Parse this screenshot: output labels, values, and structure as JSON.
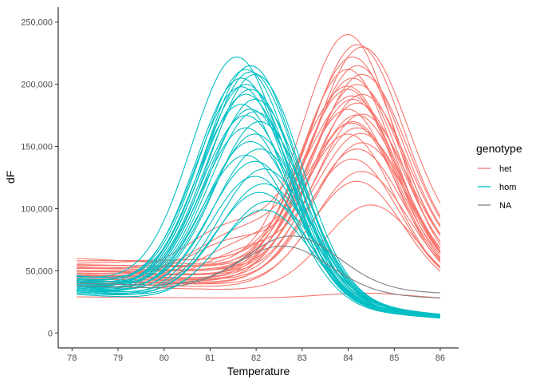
{
  "chart_data": {
    "type": "line",
    "title": "",
    "xlabel": "Temperature",
    "ylabel": "dF",
    "xlim": [
      77.7,
      86.4
    ],
    "ylim": [
      -12000,
      262000
    ],
    "x_ticks": [
      78,
      79,
      80,
      81,
      82,
      83,
      84,
      85,
      86
    ],
    "y_ticks": [
      0,
      50000,
      100000,
      150000,
      200000,
      250000
    ],
    "y_tick_labels": [
      "0",
      "50,000",
      "100,000",
      "150,000",
      "200,000",
      "250,000"
    ],
    "grid": false,
    "legend": {
      "title": "genotype",
      "position": "right",
      "entries": [
        {
          "label": "het",
          "color": "#F8766D"
        },
        {
          "label": "hom",
          "color": "#00BFC4"
        },
        {
          "label": "NA",
          "color": "#7F7F7F"
        }
      ]
    },
    "x_range": [
      78.1,
      86.0
    ],
    "curve_shape": "baseline + gaussian melt peak per sample",
    "groups": [
      {
        "name": "het",
        "color": "#F8766D",
        "curves": [
          {
            "peak_x": 84.0,
            "peak_y": 240000,
            "start_y": 60000,
            "end_y": 45000
          },
          {
            "peak_x": 84.2,
            "peak_y": 232000,
            "start_y": 58000,
            "end_y": 60000
          },
          {
            "peak_x": 84.3,
            "peak_y": 230000,
            "start_y": 56000,
            "end_y": 65000
          },
          {
            "peak_x": 84.1,
            "peak_y": 222000,
            "start_y": 55000,
            "end_y": 50000
          },
          {
            "peak_x": 84.2,
            "peak_y": 215000,
            "start_y": 54000,
            "end_y": 55000
          },
          {
            "peak_x": 84.0,
            "peak_y": 212000,
            "start_y": 53000,
            "end_y": 42000
          },
          {
            "peak_x": 84.3,
            "peak_y": 208000,
            "start_y": 52000,
            "end_y": 56000
          },
          {
            "peak_x": 84.1,
            "peak_y": 205000,
            "start_y": 52000,
            "end_y": 48000
          },
          {
            "peak_x": 84.2,
            "peak_y": 200000,
            "start_y": 50000,
            "end_y": 50000
          },
          {
            "peak_x": 84.0,
            "peak_y": 196000,
            "start_y": 50000,
            "end_y": 40000
          },
          {
            "peak_x": 84.3,
            "peak_y": 192000,
            "start_y": 49000,
            "end_y": 52000
          },
          {
            "peak_x": 84.1,
            "peak_y": 188000,
            "start_y": 48000,
            "end_y": 45000
          },
          {
            "peak_x": 84.2,
            "peak_y": 185000,
            "start_y": 48000,
            "end_y": 46000
          },
          {
            "peak_x": 84.0,
            "peak_y": 180000,
            "start_y": 47000,
            "end_y": 38000
          },
          {
            "peak_x": 84.3,
            "peak_y": 176000,
            "start_y": 46000,
            "end_y": 48000
          },
          {
            "peak_x": 84.1,
            "peak_y": 170000,
            "start_y": 45000,
            "end_y": 42000
          },
          {
            "peak_x": 84.2,
            "peak_y": 165000,
            "start_y": 45000,
            "end_y": 40000
          },
          {
            "peak_x": 84.0,
            "peak_y": 160000,
            "start_y": 44000,
            "end_y": 36000
          },
          {
            "peak_x": 84.3,
            "peak_y": 153000,
            "start_y": 43000,
            "end_y": 42000
          },
          {
            "peak_x": 84.2,
            "peak_y": 148000,
            "start_y": 42000,
            "end_y": 38000
          },
          {
            "peak_x": 84.1,
            "peak_y": 140000,
            "start_y": 42000,
            "end_y": 35000
          },
          {
            "peak_x": 84.3,
            "peak_y": 130000,
            "start_y": 41000,
            "end_y": 36000
          },
          {
            "peak_x": 84.2,
            "peak_y": 122000,
            "start_y": 40000,
            "end_y": 32000
          },
          {
            "peak_x": 84.5,
            "peak_y": 103000,
            "start_y": 38000,
            "end_y": 30000
          },
          {
            "peak_x": 84.0,
            "peak_y": 198000,
            "start_y": 52000,
            "end_y": 44000,
            "shoulder_x": 81.4,
            "shoulder_y": 112000
          },
          {
            "peak_x": 84.1,
            "peak_y": 190000,
            "start_y": 50000,
            "end_y": 42000,
            "shoulder_x": 81.6,
            "shoulder_y": 104000
          },
          {
            "peak_x": 84.2,
            "peak_y": 175000,
            "start_y": 48000,
            "end_y": 40000,
            "shoulder_x": 81.5,
            "shoulder_y": 96000
          },
          {
            "peak_x": 84.1,
            "peak_y": 168000,
            "start_y": 46000,
            "end_y": 38000,
            "shoulder_x": 81.7,
            "shoulder_y": 90000
          },
          {
            "peak_x": 84.3,
            "peak_y": 160000,
            "start_y": 45000,
            "end_y": 36000,
            "shoulder_x": 81.8,
            "shoulder_y": 84000
          },
          {
            "peak_x": 84.4,
            "peak_y": 32000,
            "start_y": 29000,
            "end_y": 27000
          }
        ]
      },
      {
        "name": "hom",
        "color": "#00BFC4",
        "curves": [
          {
            "peak_x": 81.6,
            "peak_y": 222000,
            "start_y": 45000,
            "end_y": 14000
          },
          {
            "peak_x": 81.8,
            "peak_y": 212000,
            "start_y": 44000,
            "end_y": 13000
          },
          {
            "peak_x": 81.9,
            "peak_y": 210000,
            "start_y": 42000,
            "end_y": 14000
          },
          {
            "peak_x": 82.0,
            "peak_y": 208000,
            "start_y": 43000,
            "end_y": 15000
          },
          {
            "peak_x": 81.7,
            "peak_y": 205000,
            "start_y": 41000,
            "end_y": 12000
          },
          {
            "peak_x": 81.8,
            "peak_y": 200000,
            "start_y": 40000,
            "end_y": 13000
          },
          {
            "peak_x": 81.9,
            "peak_y": 196000,
            "start_y": 42000,
            "end_y": 14000
          },
          {
            "peak_x": 81.8,
            "peak_y": 192000,
            "start_y": 39000,
            "end_y": 12000
          },
          {
            "peak_x": 82.0,
            "peak_y": 188000,
            "start_y": 41000,
            "end_y": 15000
          },
          {
            "peak_x": 81.7,
            "peak_y": 184000,
            "start_y": 38000,
            "end_y": 12000
          },
          {
            "peak_x": 81.9,
            "peak_y": 180000,
            "start_y": 40000,
            "end_y": 13000
          },
          {
            "peak_x": 81.8,
            "peak_y": 175000,
            "start_y": 37000,
            "end_y": 14000
          },
          {
            "peak_x": 82.1,
            "peak_y": 170000,
            "start_y": 39000,
            "end_y": 15000
          },
          {
            "peak_x": 81.8,
            "peak_y": 165000,
            "start_y": 36000,
            "end_y": 12000
          },
          {
            "peak_x": 82.0,
            "peak_y": 160000,
            "start_y": 38000,
            "end_y": 13000
          },
          {
            "peak_x": 81.9,
            "peak_y": 154000,
            "start_y": 35000,
            "end_y": 14000
          },
          {
            "peak_x": 82.1,
            "peak_y": 148000,
            "start_y": 37000,
            "end_y": 15000
          },
          {
            "peak_x": 81.8,
            "peak_y": 143000,
            "start_y": 34000,
            "end_y": 12000
          },
          {
            "peak_x": 82.0,
            "peak_y": 138000,
            "start_y": 36000,
            "end_y": 13000
          },
          {
            "peak_x": 82.2,
            "peak_y": 132000,
            "start_y": 35000,
            "end_y": 14000
          },
          {
            "peak_x": 82.0,
            "peak_y": 126000,
            "start_y": 33000,
            "end_y": 12000
          },
          {
            "peak_x": 82.2,
            "peak_y": 120000,
            "start_y": 34000,
            "end_y": 13000
          },
          {
            "peak_x": 82.1,
            "peak_y": 113000,
            "start_y": 32000,
            "end_y": 14000
          },
          {
            "peak_x": 82.3,
            "peak_y": 106000,
            "start_y": 33000,
            "end_y": 15000
          },
          {
            "peak_x": 82.2,
            "peak_y": 99000,
            "start_y": 31000,
            "end_y": 12000
          },
          {
            "peak_x": 81.9,
            "peak_y": 215000,
            "start_y": 46000,
            "end_y": 14000
          },
          {
            "peak_x": 81.7,
            "peak_y": 198000,
            "start_y": 43000,
            "end_y": 13000
          },
          {
            "peak_x": 82.0,
            "peak_y": 178000,
            "start_y": 41000,
            "end_y": 12000
          }
        ]
      },
      {
        "name": "NA",
        "color": "#7F7F7F",
        "curves": [
          {
            "peak_x": 82.8,
            "peak_y": 78000,
            "start_y": 40000,
            "end_y": 32000
          },
          {
            "peak_x": 82.6,
            "peak_y": 70000,
            "start_y": 38000,
            "end_y": 28000
          }
        ]
      }
    ]
  }
}
